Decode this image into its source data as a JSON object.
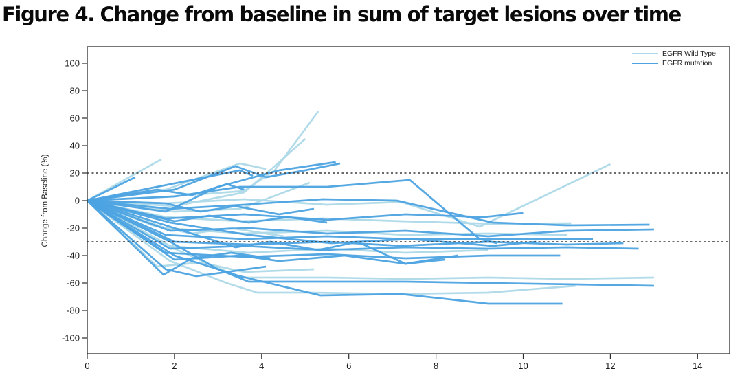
{
  "chart_data": {
    "type": "line",
    "title": "Figure 4. Change from baseline in sum of target lesions over time",
    "xlabel": "",
    "ylabel": "Change from Baseline (%)",
    "x_ticks": [
      0,
      2,
      4,
      6,
      8,
      10,
      12,
      14
    ],
    "y_ticks": [
      100,
      80,
      60,
      40,
      20,
      0,
      -20,
      -40,
      -60,
      -80,
      -100
    ],
    "xlim": [
      0,
      14.7
    ],
    "ylim": [
      -112,
      112
    ],
    "grid": false,
    "legend_position": "top-right-inside",
    "frame_color": "#2b2b2b",
    "reference_lines": {
      "values": [
        20,
        -30
      ],
      "style": "dashed",
      "color": "#3a3a3a"
    },
    "colors": {
      "wild_type": "#aed9e8",
      "mutation": "#4da3e2"
    },
    "legend": [
      {
        "label": "EGFR Wild Type",
        "group": "wild_type"
      },
      {
        "label": "EGFR mutation",
        "group": "mutation"
      }
    ],
    "series": [
      {
        "group": "wild_type",
        "points": [
          [
            0,
            0
          ],
          [
            1.7,
            30
          ]
        ]
      },
      {
        "group": "wild_type",
        "points": [
          [
            0,
            0
          ],
          [
            1.8,
            8
          ],
          [
            3.5,
            27
          ],
          [
            4.1,
            23
          ]
        ]
      },
      {
        "group": "wild_type",
        "points": [
          [
            0,
            0
          ],
          [
            2,
            -4
          ],
          [
            3.6,
            6
          ],
          [
            4.3,
            25
          ],
          [
            5,
            45
          ]
        ]
      },
      {
        "group": "wild_type",
        "points": [
          [
            0,
            0
          ],
          [
            1.9,
            3
          ],
          [
            3.6,
            7
          ],
          [
            4.3,
            22
          ],
          [
            5.3,
            65
          ]
        ]
      },
      {
        "group": "wild_type",
        "points": [
          [
            0,
            0
          ],
          [
            2,
            -8
          ],
          [
            3.5,
            -6
          ],
          [
            5.1,
            13
          ]
        ]
      },
      {
        "group": "wild_type",
        "points": [
          [
            0,
            0
          ],
          [
            1.8,
            -2
          ],
          [
            3.6,
            1
          ],
          [
            5.5,
            -3
          ],
          [
            7.2,
            -1
          ],
          [
            9,
            -19
          ],
          [
            12,
            26.5
          ]
        ]
      },
      {
        "group": "wild_type",
        "points": [
          [
            0,
            0
          ],
          [
            1.8,
            -12
          ],
          [
            3.5,
            -15
          ],
          [
            5.4,
            -13
          ],
          [
            7.2,
            -15
          ],
          [
            9.4,
            -17
          ],
          [
            11.1,
            -16.5
          ]
        ]
      },
      {
        "group": "wild_type",
        "points": [
          [
            0,
            0
          ],
          [
            1.8,
            -20
          ],
          [
            3.6,
            -24
          ],
          [
            5.5,
            -22
          ],
          [
            7.3,
            -25
          ],
          [
            9.2,
            -24
          ],
          [
            11,
            -25
          ]
        ]
      },
      {
        "group": "wild_type",
        "points": [
          [
            0,
            0
          ],
          [
            1.9,
            -33
          ],
          [
            3.7,
            -38
          ],
          [
            5.5,
            -35
          ],
          [
            7.3,
            -38
          ],
          [
            9.2,
            -36
          ]
        ]
      },
      {
        "group": "wild_type",
        "points": [
          [
            0,
            0
          ],
          [
            1.6,
            -48
          ],
          [
            2.6,
            -45
          ],
          [
            3.6,
            -52
          ],
          [
            5.2,
            -50
          ]
        ]
      },
      {
        "group": "wild_type",
        "points": [
          [
            0,
            0
          ],
          [
            1.9,
            -44
          ],
          [
            3.2,
            -60
          ],
          [
            3.9,
            -67
          ],
          [
            5.1,
            -67
          ],
          [
            7.2,
            -68
          ],
          [
            9.2,
            -67
          ],
          [
            11.2,
            -62
          ]
        ]
      },
      {
        "group": "wild_type",
        "points": [
          [
            0,
            0
          ],
          [
            2,
            -35
          ],
          [
            3.5,
            -56
          ],
          [
            5.5,
            -56
          ],
          [
            7.3,
            -57
          ],
          [
            9.2,
            -56
          ],
          [
            11,
            -57
          ],
          [
            13,
            -56
          ]
        ]
      },
      {
        "group": "wild_type",
        "points": [
          [
            0,
            0
          ],
          [
            1.5,
            -18
          ],
          [
            2.4,
            -24
          ],
          [
            3.3,
            -20
          ],
          [
            4.5,
            -26
          ]
        ]
      },
      {
        "group": "mutation",
        "points": [
          [
            0,
            0
          ],
          [
            1.1,
            17
          ]
        ]
      },
      {
        "group": "mutation",
        "points": [
          [
            0,
            0
          ],
          [
            1.8,
            -8
          ],
          [
            3,
            10
          ],
          [
            4.4,
            22
          ],
          [
            5.7,
            28
          ]
        ]
      },
      {
        "group": "mutation",
        "points": [
          [
            0,
            0
          ],
          [
            2,
            8
          ],
          [
            3.4,
            25
          ],
          [
            4.1,
            17
          ],
          [
            5,
            22
          ],
          [
            5.8,
            27
          ]
        ]
      },
      {
        "group": "mutation",
        "points": [
          [
            0,
            0
          ],
          [
            1.6,
            10
          ],
          [
            2.4,
            15
          ],
          [
            3.5,
            22
          ],
          [
            3.8,
            18
          ]
        ]
      },
      {
        "group": "mutation",
        "points": [
          [
            0,
            0
          ],
          [
            2,
            3
          ],
          [
            3.5,
            10
          ],
          [
            5.5,
            10
          ],
          [
            7.4,
            15
          ],
          [
            9,
            -28
          ],
          [
            9.4,
            -31
          ]
        ]
      },
      {
        "group": "mutation",
        "points": [
          [
            0,
            0
          ],
          [
            1.9,
            -6
          ],
          [
            3.6,
            -3
          ],
          [
            5.4,
            1
          ],
          [
            7.1,
            0
          ],
          [
            9.3,
            -16
          ],
          [
            11,
            -18
          ],
          [
            12.9,
            -17.5
          ]
        ]
      },
      {
        "group": "mutation",
        "points": [
          [
            0,
            0
          ],
          [
            1.8,
            -13
          ],
          [
            3.6,
            -10
          ],
          [
            5.5,
            -14
          ],
          [
            7.3,
            -10
          ],
          [
            9.1,
            -12
          ],
          [
            10,
            -9
          ]
        ]
      },
      {
        "group": "mutation",
        "points": [
          [
            0,
            0
          ],
          [
            2,
            -15
          ],
          [
            2.8,
            -11
          ],
          [
            3.7,
            -16
          ],
          [
            4.6,
            -12
          ],
          [
            5.5,
            -16
          ]
        ]
      },
      {
        "group": "mutation",
        "points": [
          [
            0,
            0
          ],
          [
            1.9,
            -22
          ],
          [
            3.7,
            -20
          ],
          [
            5.5,
            -24
          ],
          [
            7.3,
            -22
          ],
          [
            9.2,
            -26
          ],
          [
            11,
            -22
          ],
          [
            13,
            -21
          ]
        ]
      },
      {
        "group": "mutation",
        "points": [
          [
            0,
            0
          ],
          [
            1.8,
            -25
          ],
          [
            3.6,
            -28
          ],
          [
            5.5,
            -26
          ],
          [
            7.3,
            -28
          ],
          [
            9.2,
            -28
          ],
          [
            11.6,
            -28
          ]
        ]
      },
      {
        "group": "mutation",
        "points": [
          [
            0,
            0
          ],
          [
            2,
            -30
          ],
          [
            3.7,
            -32
          ],
          [
            5.5,
            -30
          ],
          [
            7.2,
            -33
          ],
          [
            9.2,
            -30
          ],
          [
            11,
            -32
          ],
          [
            12.3,
            -31
          ]
        ]
      },
      {
        "group": "mutation",
        "points": [
          [
            0,
            0
          ],
          [
            1.9,
            -35
          ],
          [
            3.6,
            -33
          ],
          [
            5.4,
            -36
          ],
          [
            7.3,
            -34
          ],
          [
            9.2,
            -35
          ],
          [
            11,
            -34
          ],
          [
            12.65,
            -35
          ]
        ]
      },
      {
        "group": "mutation",
        "points": [
          [
            0,
            0
          ],
          [
            1.8,
            -38
          ],
          [
            3.6,
            -41
          ],
          [
            5.5,
            -39
          ],
          [
            7.3,
            -42
          ],
          [
            9.2,
            -40
          ],
          [
            10.85,
            -40
          ]
        ]
      },
      {
        "group": "mutation",
        "points": [
          [
            0,
            0
          ],
          [
            2,
            -43
          ],
          [
            3.5,
            -40
          ],
          [
            4.4,
            -44
          ],
          [
            5.9,
            -40
          ],
          [
            7.3,
            -46
          ],
          [
            8.2,
            -43
          ]
        ]
      },
      {
        "group": "mutation",
        "points": [
          [
            0,
            0
          ],
          [
            1.75,
            -54
          ],
          [
            2.4,
            -42
          ],
          [
            3.3,
            -38
          ],
          [
            4.2,
            -42
          ]
        ]
      },
      {
        "group": "mutation",
        "points": [
          [
            0,
            0
          ],
          [
            1.9,
            -30
          ],
          [
            3,
            -50
          ],
          [
            3.7,
            -59
          ],
          [
            5.5,
            -59
          ],
          [
            7.3,
            -59
          ],
          [
            9.2,
            -60
          ],
          [
            11.2,
            -61
          ],
          [
            13,
            -62
          ]
        ]
      },
      {
        "group": "mutation",
        "points": [
          [
            0,
            0
          ],
          [
            2,
            -40
          ],
          [
            3.5,
            -55
          ],
          [
            5.35,
            -69
          ],
          [
            7.2,
            -68
          ],
          [
            9.2,
            -75
          ],
          [
            10.9,
            -75
          ]
        ]
      },
      {
        "group": "mutation",
        "points": [
          [
            0,
            0
          ],
          [
            1.8,
            -50
          ],
          [
            2.5,
            -55
          ],
          [
            3.2,
            -52
          ],
          [
            4.1,
            -48
          ]
        ]
      },
      {
        "group": "mutation",
        "points": [
          [
            0,
            0
          ],
          [
            2,
            -20
          ],
          [
            3.4,
            -34
          ],
          [
            4.2,
            -30
          ],
          [
            5.3,
            -36
          ],
          [
            6.2,
            -30
          ],
          [
            7.3,
            -46
          ],
          [
            8.5,
            -40
          ]
        ]
      },
      {
        "group": "mutation",
        "points": [
          [
            0,
            0
          ],
          [
            1.9,
            -16
          ],
          [
            3.7,
            -25
          ],
          [
            5.6,
            -31
          ],
          [
            7.4,
            -28
          ],
          [
            9.3,
            -33
          ],
          [
            10.3,
            -30
          ]
        ]
      },
      {
        "group": "mutation",
        "points": [
          [
            0,
            0
          ],
          [
            1.6,
            8
          ],
          [
            2.4,
            4
          ],
          [
            3.2,
            12
          ],
          [
            3.6,
            8
          ]
        ]
      },
      {
        "group": "mutation",
        "points": [
          [
            0,
            0
          ],
          [
            1.8,
            -2
          ],
          [
            2.6,
            -8
          ],
          [
            3.4,
            -4
          ],
          [
            4.4,
            -10
          ],
          [
            5.2,
            -6
          ]
        ]
      }
    ]
  }
}
